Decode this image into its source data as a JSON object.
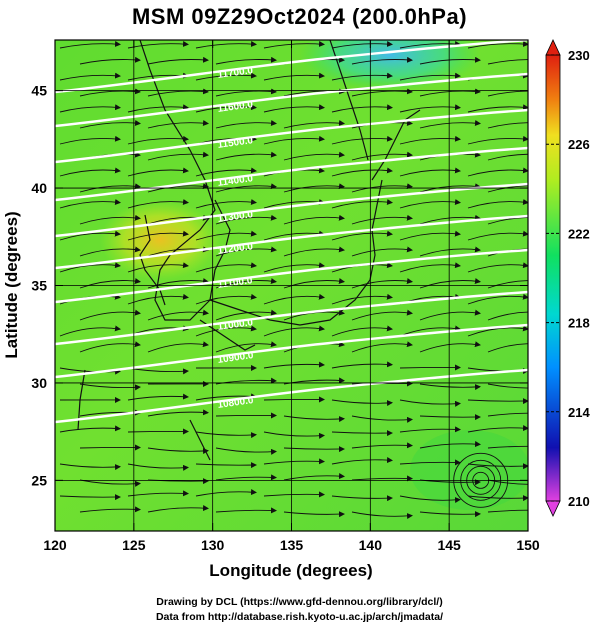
{
  "title": "MSM 09Z29Oct2024 (200.0hPa)",
  "x_axis": {
    "label": "Longitude (degrees)",
    "ticks": [
      "120",
      "125",
      "130",
      "135",
      "140",
      "145",
      "150"
    ],
    "range": [
      120,
      150
    ]
  },
  "y_axis": {
    "label": "Latitude  (degrees)",
    "ticks": [
      "25",
      "30",
      "35",
      "40",
      "45"
    ],
    "range": [
      22.4,
      47.6
    ]
  },
  "colorbar": {
    "ticks": [
      "210",
      "214",
      "218",
      "222",
      "226",
      "230"
    ],
    "range": [
      210,
      230
    ],
    "stops": [
      "#e040e0",
      "#1010b0",
      "#0090ff",
      "#00d8d0",
      "#10e060",
      "#b0ec20",
      "#f0e020",
      "#f08010",
      "#e02010"
    ]
  },
  "contour_labels": [
    "11700.0",
    "11600.0",
    "11500.0",
    "11400.0",
    "11300.0",
    "11200.0",
    "11100.0",
    "11000.0",
    "10900.0",
    "10800.0"
  ],
  "credits": {
    "line1": "Drawing by DCL (https://www.gfd-dennou.org/library/dcl/)",
    "line2": "Data from http://database.rish.kyoto-u.ac.jp/arch/jmadata/"
  }
}
